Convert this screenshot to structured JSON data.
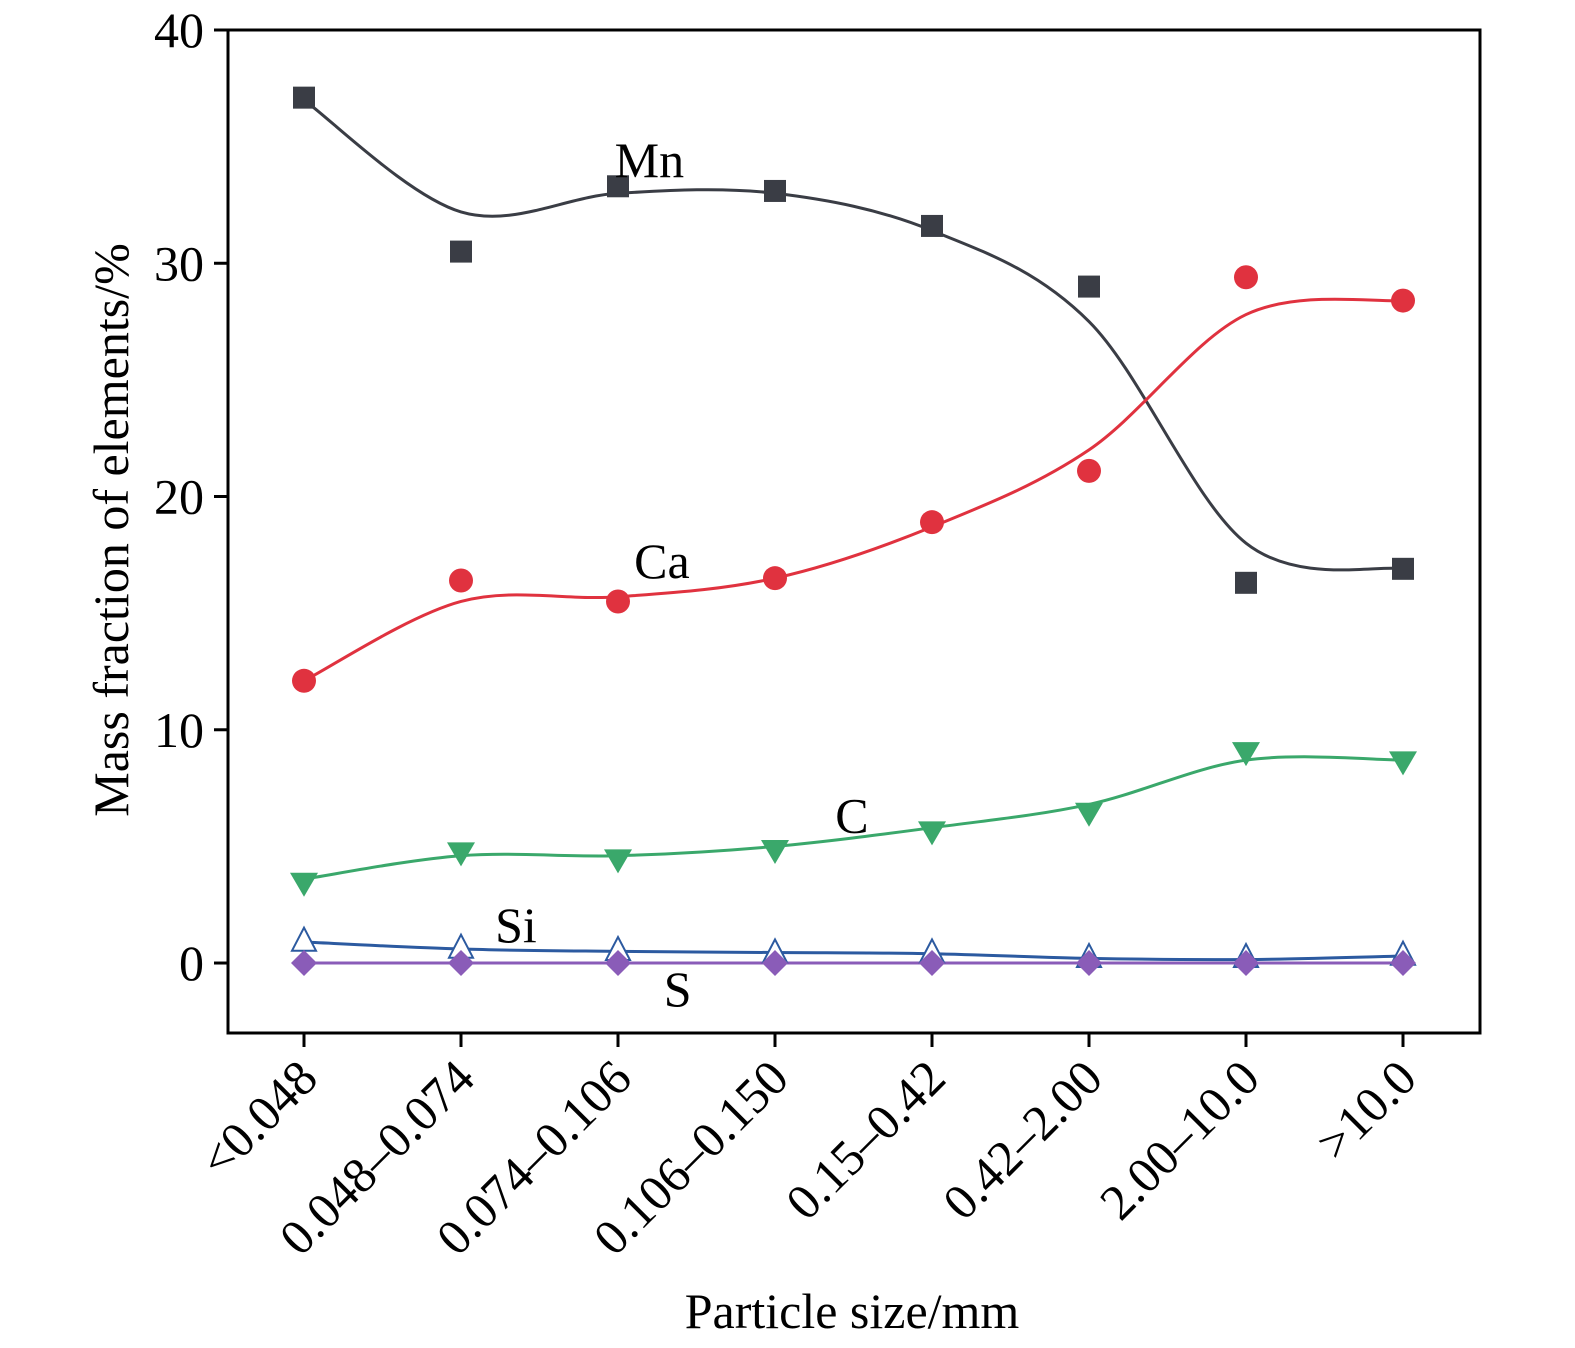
{
  "chart_data": {
    "type": "line",
    "xlabel": "Particle size/mm",
    "ylabel": "Mass fraction of elements/%",
    "categories": [
      "<0.048",
      "0.048–0.074",
      "0.074–0.106",
      "0.106–0.150",
      "0.15–0.42",
      "0.42–2.00",
      "2.00–10.0",
      ">10.0"
    ],
    "ylim": [
      -3,
      40
    ],
    "yticks": [
      0,
      10,
      20,
      30,
      40
    ],
    "grid": false,
    "series": [
      {
        "name": "Mn",
        "color": "#3a3d45",
        "marker": "square",
        "values": [
          37.1,
          30.5,
          33.3,
          33.1,
          31.6,
          29.0,
          16.3,
          16.9
        ],
        "fit": [
          37.0,
          32.2,
          33.0,
          33.0,
          31.4,
          27.5,
          18.0,
          16.9
        ]
      },
      {
        "name": "Ca",
        "color": "#e0323f",
        "marker": "circle",
        "values": [
          12.1,
          16.4,
          15.5,
          16.5,
          18.9,
          21.1,
          29.4,
          28.4
        ],
        "fit": [
          12.1,
          15.5,
          15.7,
          16.5,
          18.7,
          22.0,
          27.8,
          28.4
        ]
      },
      {
        "name": "C",
        "color": "#3aa86b",
        "marker": "triangle-down",
        "values": [
          3.4,
          4.7,
          4.4,
          4.8,
          5.6,
          6.4,
          9.0,
          8.6
        ],
        "fit": [
          3.6,
          4.6,
          4.6,
          5.0,
          5.8,
          6.8,
          8.7,
          8.7
        ]
      },
      {
        "name": "Si",
        "color": "#2c5aa0",
        "marker": "triangle-up-open",
        "values": [
          1.0,
          0.7,
          0.6,
          0.5,
          0.5,
          0.3,
          0.3,
          0.4
        ],
        "fit": [
          0.9,
          0.6,
          0.5,
          0.45,
          0.4,
          0.2,
          0.15,
          0.3
        ]
      },
      {
        "name": "S",
        "color": "#8a5cb8",
        "marker": "diamond",
        "values": [
          0.0,
          0.0,
          0.0,
          0.0,
          0.0,
          0.0,
          0.0,
          0.0
        ],
        "fit": [
          0.0,
          0.0,
          0.0,
          0.0,
          0.0,
          0.0,
          0.0,
          0.0
        ]
      }
    ],
    "annotations": [
      {
        "text": "Mn",
        "series": "Mn"
      },
      {
        "text": "Ca",
        "series": "Ca"
      },
      {
        "text": "C",
        "series": "C"
      },
      {
        "text": "Si",
        "series": "Si"
      },
      {
        "text": "S",
        "series": "S"
      }
    ]
  }
}
